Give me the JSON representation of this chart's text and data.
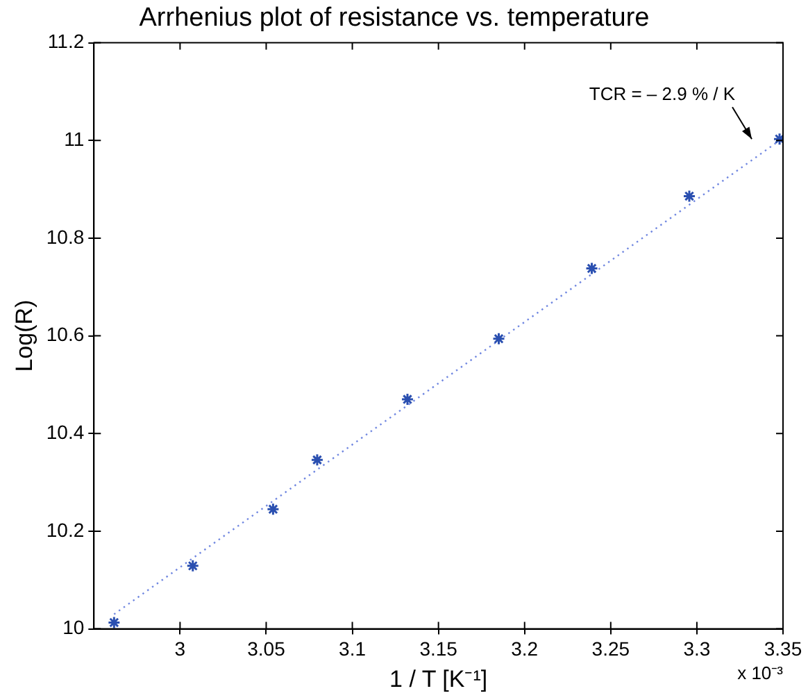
{
  "chart_data": {
    "type": "scatter",
    "title": "Arrhenius plot of resistance vs. temperature",
    "xlabel": "1 / T [K⁻¹]",
    "ylabel": "Log(R)",
    "xlim": [
      2.95,
      3.35
    ],
    "xticks": [
      3,
      3.05,
      3.1,
      3.15,
      3.2,
      3.25,
      3.3,
      3.35
    ],
    "ylim": [
      10,
      11.2
    ],
    "yticks": [
      10,
      10.2,
      10.4,
      10.6,
      10.8,
      11,
      11.2
    ],
    "grid": false,
    "legend": false,
    "series": [
      {
        "color": "#2a4fb0",
        "marker": "cross",
        "x": [
          2.9617,
          3.0074,
          3.054,
          3.0796,
          3.132,
          3.185,
          3.239,
          3.2956,
          3.348
        ],
        "values": [
          10.013,
          10.129,
          10.245,
          10.346,
          10.47,
          10.594,
          10.738,
          10.886,
          11.003
        ]
      },
      {
        "type": "line",
        "color": "#6f86e0",
        "marker": "none",
        "line_style": "dotted",
        "x": [
          2.9617,
          3.348
        ],
        "values": [
          10.03,
          11.0
        ]
      }
    ],
    "annotations": [
      "TCR = – 2.9 % / K",
      "x 10⁻³"
    ]
  }
}
